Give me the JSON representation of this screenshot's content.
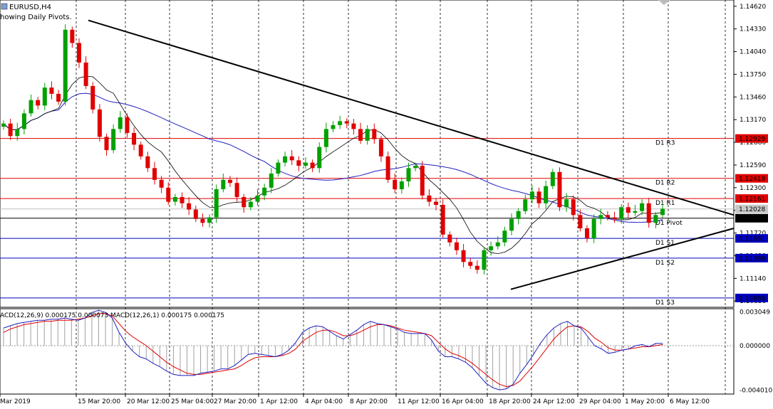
{
  "header": {
    "symbol": "EURUSD,H4",
    "subtitle": "howing Daily Pivots."
  },
  "macd_label": "ACD(12,26,9) 0.000175 0.000073 MACD(12,26,1) 0.000175 0.000175",
  "colors": {
    "background": "#ffffff",
    "candle_up": "#00a000",
    "candle_down": "#e00000",
    "ma_fast": "#000000",
    "ma_slow": "#2020c0",
    "resistance": "#e00000",
    "support": "#0000c0",
    "pivot": "#000000",
    "trendline": "#000000",
    "macd_line": "#2020c0",
    "signal_line": "#e00000"
  },
  "chart_data": {
    "type": "candlestick",
    "symbol": "EURUSD",
    "timeframe": "H4",
    "price_axis": {
      "ticks": [
        "1.14620",
        "1.14330",
        "1.14040",
        "1.13750",
        "1.13460",
        "1.13170",
        "1.12880",
        "1.12590",
        "1.12300",
        "1.12010",
        "1.11720",
        "1.11430",
        "1.11140",
        "1.10850"
      ],
      "ylim": [
        1.1077,
        1.147
      ]
    },
    "x_ticks": [
      "Mar 2019",
      "15 Mar 20:00",
      "20 Mar 12:00",
      "25 Mar 04:00",
      "27 Mar 20:00",
      "1 Apr 12:00",
      "4 Apr 04:00",
      "8 Apr 20:00",
      "11 Apr 12:00",
      "16 Apr 04:00",
      "18 Apr 20:00",
      "24 Apr 12:00",
      "29 Apr 04:00",
      "1 May 20:00",
      "6 May 12:00"
    ],
    "pivot_levels": [
      {
        "name": "D1 R3",
        "value": 1.12929,
        "price_label": "1.12929",
        "kind": "resistance"
      },
      {
        "name": "D1 R2",
        "value": 1.12419,
        "price_label": "1.12419",
        "kind": "resistance"
      },
      {
        "name": "D1 R1",
        "value": 1.12161,
        "price_label": "1.12161",
        "kind": "resistance"
      },
      {
        "name": "D1 Pivot",
        "value": 1.11909,
        "price_label": "1.11909",
        "kind": "pivot"
      },
      {
        "name": "D1 S1",
        "value": 1.11651,
        "price_label": "1.11651",
        "kind": "support"
      },
      {
        "name": "D1 S2",
        "value": 1.11399,
        "price_label": "1.11399",
        "kind": "support"
      },
      {
        "name": "D1 S3",
        "value": 1.10889,
        "price_label": "1.10889",
        "kind": "support"
      }
    ],
    "current_price": {
      "value": 1.12028,
      "label": "1.12028"
    },
    "trendlines": [
      {
        "name": "falling-resistance",
        "from": {
          "bar": 4,
          "price": 1.1444
        },
        "to": {
          "bar": 106,
          "price": 1.1195
        }
      },
      {
        "name": "rising-support",
        "from": {
          "bar": 74,
          "price": 1.11
        },
        "to": {
          "bar": 106,
          "price": 1.1178
        }
      }
    ],
    "macd_panel": {
      "ticks": [
        "0.003049",
        "0.000000",
        "-0.004010"
      ],
      "ylim": [
        -0.00425,
        0.00315
      ],
      "macd_line": [
        0.0016,
        0.0018,
        0.002,
        0.0021,
        0.0022,
        0.0023,
        0.0023,
        0.0024,
        0.0024,
        0.0025,
        0.0024,
        0.0023,
        0.0025,
        0.003,
        0.0032,
        0.003,
        0.0025,
        0.0012,
        0.0002,
        -0.0005,
        -0.001,
        -0.0012,
        -0.0016,
        -0.0019,
        -0.0023,
        -0.0026,
        -0.0027,
        -0.0027,
        -0.0027,
        -0.0025,
        -0.0024,
        -0.0023,
        -0.0021,
        -0.0021,
        -0.0018,
        -0.0013,
        -0.0008,
        -0.0007,
        -0.0008,
        -0.0009,
        -0.001,
        -0.0008,
        -0.0004,
        0.0003,
        0.0012,
        0.0016,
        0.0018,
        0.0017,
        0.0013,
        0.0009,
        0.0006,
        0.001,
        0.0014,
        0.0019,
        0.0022,
        0.002,
        0.0019,
        0.0017,
        0.0015,
        0.0012,
        0.0011,
        0.0011,
        0.0011,
        0.0005,
        -0.0005,
        -0.001,
        -0.001,
        -0.0012,
        -0.0015,
        -0.002,
        -0.0027,
        -0.0034,
        -0.0038,
        -0.004,
        -0.0039,
        -0.0035,
        -0.0025,
        -0.0017,
        -0.0008,
        0.0002,
        0.001,
        0.0016,
        0.002,
        0.0022,
        0.0018,
        0.0016,
        0.0008,
        0.0,
        -0.0003,
        -0.0007,
        -0.0006,
        -0.0004,
        -0.0003,
        0.0,
        0.0001,
        -0.0001,
        0.0002,
        0.0002
      ],
      "signal_line": [
        0.0012,
        0.0015,
        0.0017,
        0.0019,
        0.002,
        0.0021,
        0.0022,
        0.0022,
        0.0023,
        0.0023,
        0.0023,
        0.0024,
        0.0025,
        0.0027,
        0.0029,
        0.0029,
        0.0027,
        0.002,
        0.0013,
        0.0008,
        0.0004,
        0.0,
        -0.0005,
        -0.001,
        -0.0015,
        -0.0019,
        -0.0022,
        -0.0025,
        -0.0026,
        -0.0026,
        -0.0025,
        -0.0024,
        -0.0023,
        -0.0022,
        -0.0021,
        -0.0018,
        -0.0014,
        -0.0011,
        -0.001,
        -0.001,
        -0.001,
        -0.0009,
        -0.0007,
        -0.0003,
        0.0004,
        0.0008,
        0.0012,
        0.0014,
        0.0014,
        0.0012,
        0.0009,
        0.0009,
        0.0011,
        0.0014,
        0.0017,
        0.0019,
        0.0019,
        0.0018,
        0.0016,
        0.0014,
        0.0013,
        0.0012,
        0.0011,
        0.0009,
        0.0003,
        -0.0003,
        -0.0007,
        -0.0009,
        -0.0012,
        -0.0016,
        -0.0021,
        -0.0026,
        -0.0031,
        -0.0035,
        -0.0037,
        -0.0036,
        -0.0032,
        -0.0025,
        -0.0018,
        -0.001,
        -0.0002,
        0.0006,
        0.0012,
        0.0017,
        0.0018,
        0.0017,
        0.0013,
        0.0007,
        0.0003,
        -0.0002,
        -0.0004,
        -0.0004,
        -0.0003,
        -0.0002,
        -0.0001,
        -0.0001,
        0.0,
        0.0001
      ]
    },
    "closes": [
      1.1312,
      1.1296,
      1.1305,
      1.1325,
      1.1342,
      1.1335,
      1.1358,
      1.135,
      1.134,
      1.1432,
      1.1415,
      1.139,
      1.136,
      1.133,
      1.1295,
      1.1278,
      1.1305,
      1.132,
      1.13,
      1.1285,
      1.127,
      1.1255,
      1.124,
      1.123,
      1.1212,
      1.1218,
      1.121,
      1.1202,
      1.119,
      1.1185,
      1.1192,
      1.1228,
      1.124,
      1.1236,
      1.1218,
      1.1205,
      1.1212,
      1.122,
      1.123,
      1.1248,
      1.1262,
      1.127,
      1.1265,
      1.1258,
      1.1262,
      1.1255,
      1.1282,
      1.1305,
      1.131,
      1.1315,
      1.1312,
      1.1305,
      1.129,
      1.1305,
      1.1292,
      1.127,
      1.124,
      1.1228,
      1.1238,
      1.1255,
      1.1258,
      1.122,
      1.1212,
      1.1208,
      1.117,
      1.116,
      1.115,
      1.1135,
      1.113,
      1.1125,
      1.115,
      1.1155,
      1.116,
      1.1175,
      1.119,
      1.12,
      1.1215,
      1.1225,
      1.121,
      1.1232,
      1.125,
      1.1205,
      1.1215,
      1.1195,
      1.1178,
      1.1165,
      1.119,
      1.1195,
      1.1192,
      1.119,
      1.1205,
      1.1198,
      1.12,
      1.121,
      1.1185,
      1.1195,
      1.1203
    ]
  }
}
